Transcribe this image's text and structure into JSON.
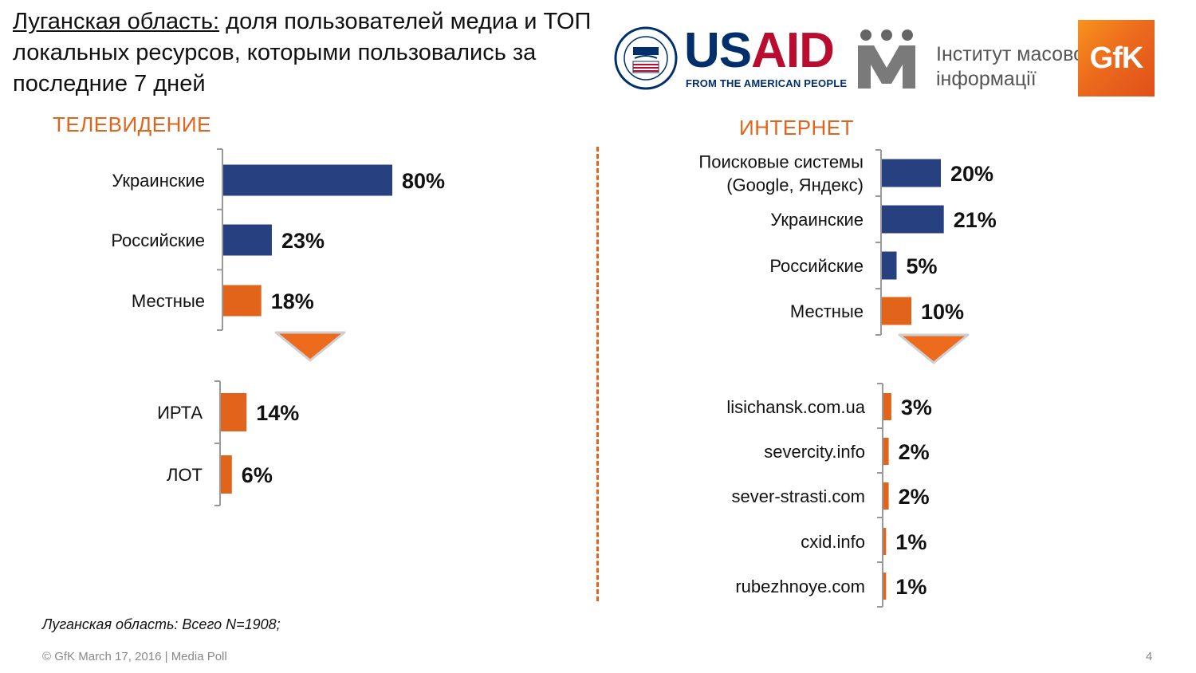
{
  "title": {
    "underlined": "Луганская область:",
    "rest": " доля пользователей медиа и ТОП локальных ресурсов, которыми пользовались за последние 7 дней"
  },
  "logos": {
    "usaid_word_us": "US",
    "usaid_word_aid": "AID",
    "usaid_tagline": "FROM THE AMERICAN PEOPLE",
    "imi_line1": "Інститут масової",
    "imi_line2": "інформації",
    "gfk": "GfK"
  },
  "colors": {
    "accent": "#e2641a",
    "navy": "#27407f",
    "orange": "#e2641a",
    "axis": "#999999"
  },
  "chart_data": [
    {
      "type": "bar",
      "orientation": "horizontal",
      "title": "ТЕЛЕВИДЕНИЕ",
      "categories": [
        "Украинские",
        "Российские",
        "Местные"
      ],
      "values": [
        80,
        23,
        18
      ],
      "labels": [
        "80%",
        "23%",
        "18%"
      ],
      "colors": [
        "#27407f",
        "#27407f",
        "#e2641a"
      ],
      "unit": "%"
    },
    {
      "type": "bar",
      "orientation": "horizontal",
      "categories": [
        "ИРТА",
        "ЛОТ"
      ],
      "values": [
        14,
        6
      ],
      "labels": [
        "14%",
        "6%"
      ],
      "colors": [
        "#e2641a",
        "#e2641a"
      ],
      "unit": "%"
    },
    {
      "type": "bar",
      "orientation": "horizontal",
      "title": "ИНТЕРНЕТ",
      "categories": [
        "Поисковые системы\n(Google, Яндекс)",
        "Украинские",
        "Российские",
        "Местные"
      ],
      "values": [
        20,
        21,
        5,
        10
      ],
      "labels": [
        "20%",
        "21%",
        "5%",
        "10%"
      ],
      "colors": [
        "#27407f",
        "#27407f",
        "#27407f",
        "#e2641a"
      ],
      "unit": "%"
    },
    {
      "type": "bar",
      "orientation": "horizontal",
      "categories": [
        "lisichansk.com.ua",
        "severcity.info",
        "sever-strasti.com",
        "cxid.info",
        "rubezhnoye.com"
      ],
      "values": [
        3,
        2,
        2,
        1,
        1
      ],
      "labels": [
        "3%",
        "2%",
        "2%",
        "1%",
        "1%"
      ],
      "colors": [
        "#e2641a",
        "#e2641a",
        "#e2641a",
        "#e2641a",
        "#e2641a"
      ],
      "unit": "%"
    }
  ],
  "note": "Луганская область: Всего N=1908;",
  "footer": "© GfK March 17, 2016 | Media Poll",
  "page_number": "4"
}
